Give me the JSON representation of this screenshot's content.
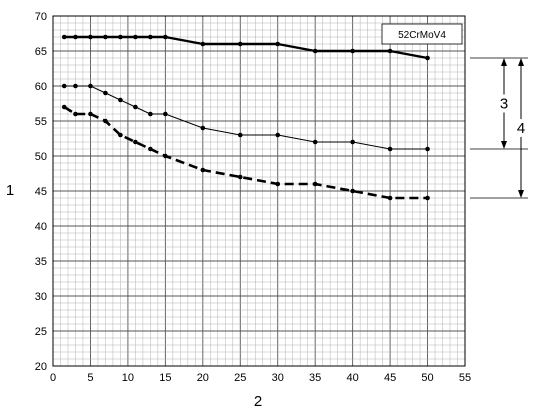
{
  "chart_data": {
    "type": "line",
    "legend": "52CrMoV4",
    "xlabel": "2",
    "ylabel": "1",
    "xlim": [
      0,
      55
    ],
    "ylim": [
      20,
      70
    ],
    "grid": true,
    "x_ticks": [
      "0",
      "5",
      "10",
      "15",
      "20",
      "25",
      "30",
      "35",
      "40",
      "45",
      "50",
      "55"
    ],
    "y_ticks": [
      "20",
      "25",
      "30",
      "35",
      "40",
      "45",
      "50",
      "55",
      "60",
      "65",
      "70"
    ],
    "series": [
      {
        "style": "thick-solid",
        "points": [
          [
            1.5,
            67
          ],
          [
            3,
            67
          ],
          [
            5,
            67
          ],
          [
            7,
            67
          ],
          [
            9,
            67
          ],
          [
            11,
            67
          ],
          [
            13,
            67
          ],
          [
            15,
            67
          ],
          [
            20,
            66
          ],
          [
            25,
            66
          ],
          [
            30,
            66
          ],
          [
            35,
            65
          ],
          [
            40,
            65
          ],
          [
            45,
            65
          ],
          [
            50,
            64
          ]
        ]
      },
      {
        "style": "thin-solid",
        "points": [
          [
            1.5,
            60
          ],
          [
            3,
            60
          ],
          [
            5,
            60
          ],
          [
            7,
            59
          ],
          [
            9,
            58
          ],
          [
            11,
            57
          ],
          [
            13,
            56
          ],
          [
            15,
            56
          ],
          [
            20,
            54
          ],
          [
            25,
            53
          ],
          [
            30,
            53
          ],
          [
            35,
            52
          ],
          [
            40,
            52
          ],
          [
            45,
            51
          ],
          [
            50,
            51
          ]
        ]
      },
      {
        "style": "thick-dashed",
        "points": [
          [
            1.5,
            57
          ],
          [
            3,
            56
          ],
          [
            5,
            56
          ],
          [
            7,
            55
          ],
          [
            9,
            53
          ],
          [
            11,
            52
          ],
          [
            13,
            51
          ],
          [
            15,
            50
          ],
          [
            20,
            48
          ],
          [
            25,
            47
          ],
          [
            30,
            46
          ],
          [
            35,
            46
          ],
          [
            40,
            45
          ],
          [
            45,
            44
          ],
          [
            50,
            44
          ]
        ]
      }
    ],
    "annotations": [
      {
        "label": "3",
        "from": 64,
        "to": 51
      },
      {
        "label": "4",
        "from": 64,
        "to": 44
      }
    ]
  }
}
